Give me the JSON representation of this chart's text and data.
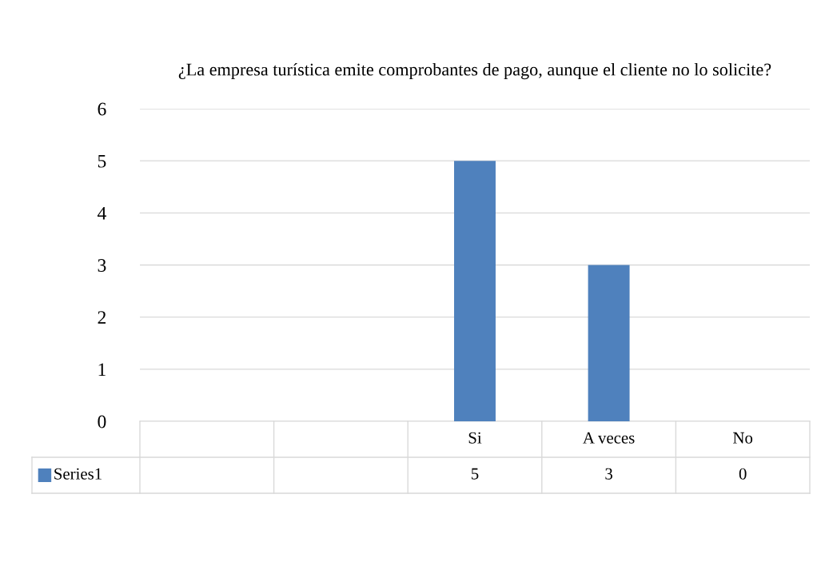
{
  "chart_data": {
    "type": "bar",
    "title": "¿La empresa turística emite comprobantes de pago, aunque el cliente no lo solicite?",
    "categories": [
      null,
      null,
      "Si",
      "A veces",
      "No"
    ],
    "series": [
      {
        "name": "Series1",
        "color": "#4f81bd",
        "values": [
          null,
          null,
          5,
          3,
          0
        ]
      }
    ],
    "ylim": [
      0,
      6
    ],
    "yticks": [
      0,
      1,
      2,
      3,
      4,
      5,
      6
    ],
    "grid": "y",
    "data_labels": true,
    "legend": "bottom"
  }
}
